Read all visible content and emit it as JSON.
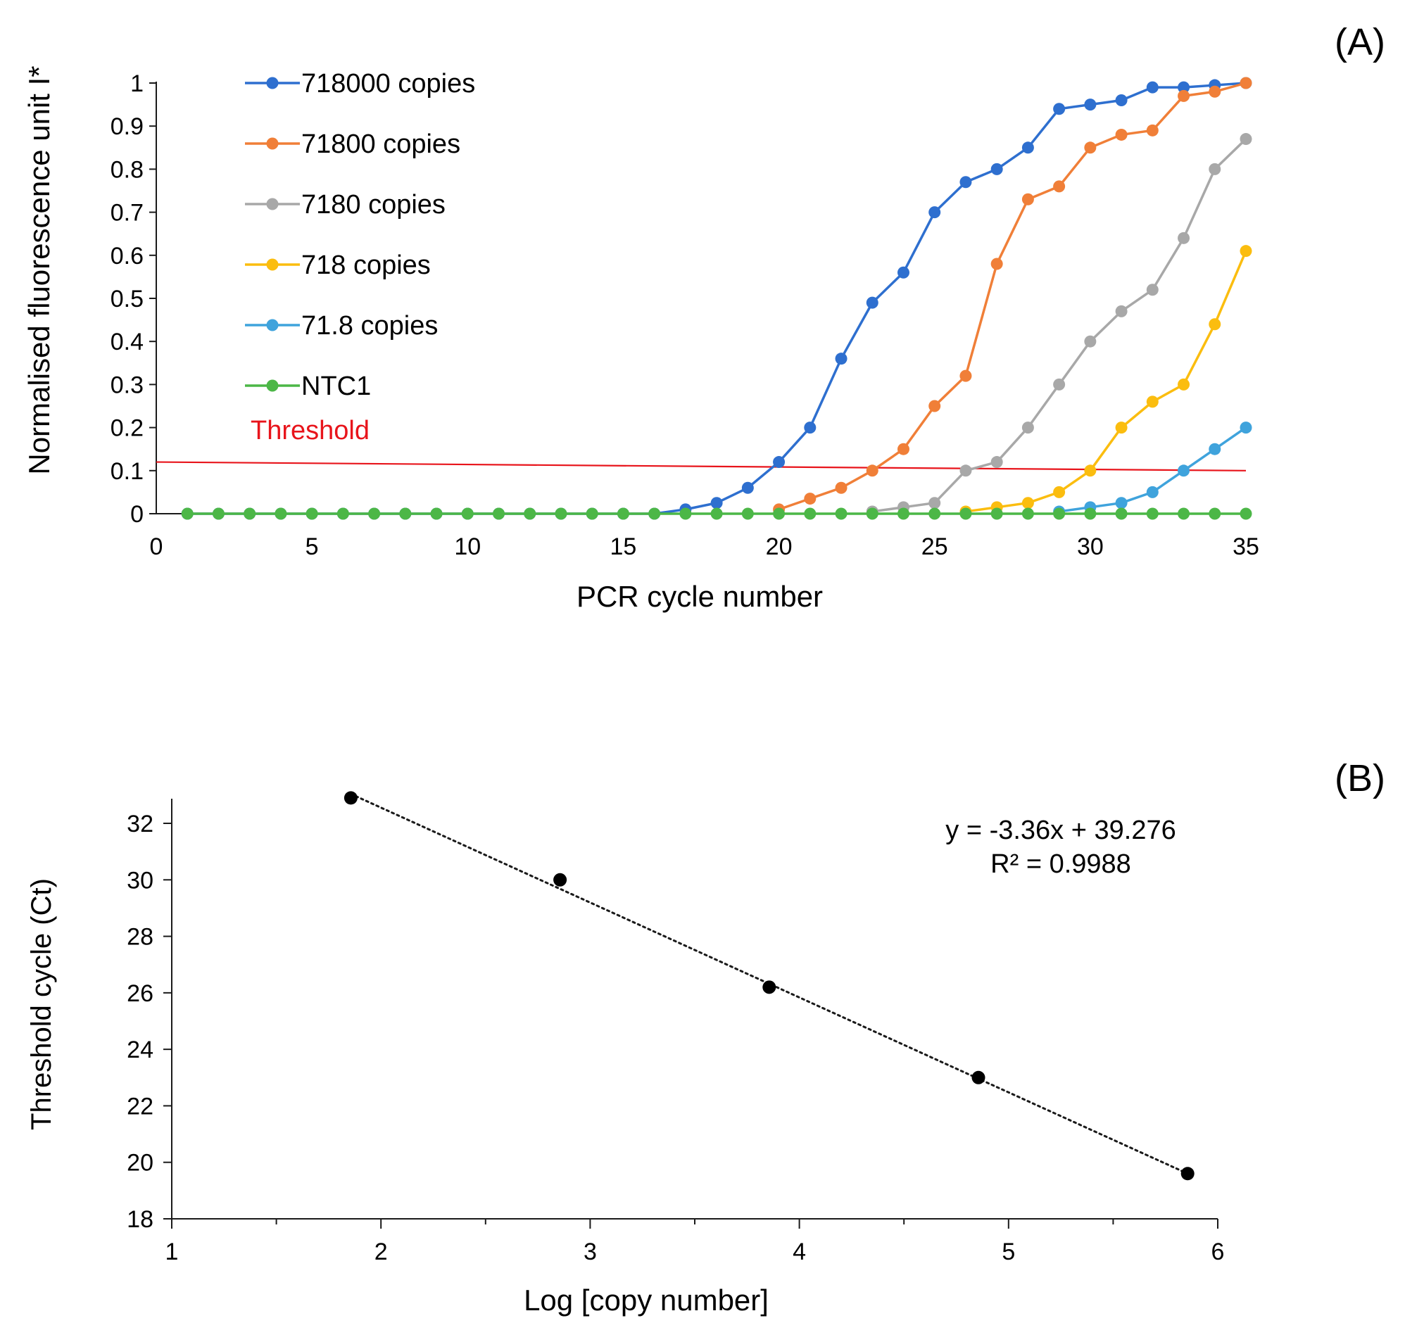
{
  "chart_data": [
    {
      "panel": "(A)",
      "type": "line",
      "xlabel": "PCR cycle number",
      "ylabel": "Normalised fluorescence unit I*",
      "xlim": [
        0,
        35
      ],
      "ylim": [
        0,
        1
      ],
      "xticks": [
        "0",
        "5",
        "10",
        "15",
        "20",
        "25",
        "30",
        "35"
      ],
      "yticks": [
        "0",
        "0.1",
        "0.2",
        "0.3",
        "0.4",
        "0.5",
        "0.6",
        "0.7",
        "0.8",
        "0.9",
        "1"
      ],
      "legend_position": "top-left",
      "series": [
        {
          "name": "718000 copies",
          "color": "#2e6fcf",
          "x": [
            1,
            2,
            3,
            4,
            5,
            6,
            7,
            8,
            9,
            10,
            11,
            12,
            13,
            14,
            15,
            16,
            17,
            18,
            19,
            20,
            21,
            22,
            23,
            24,
            25,
            26,
            27,
            28,
            29,
            30,
            31,
            32,
            33,
            34,
            35
          ],
          "values": [
            0,
            0,
            0,
            0,
            0,
            0,
            0,
            0,
            0,
            0,
            0,
            0,
            0,
            0,
            0,
            0,
            0.01,
            0.025,
            0.06,
            0.12,
            0.2,
            0.36,
            0.49,
            0.56,
            0.7,
            0.77,
            0.8,
            0.85,
            0.94,
            0.95,
            0.96,
            0.99,
            0.99,
            0.995,
            1.0
          ]
        },
        {
          "name": "71800 copies",
          "color": "#f07f38",
          "x": [
            20,
            21,
            22,
            23,
            24,
            25,
            26,
            27,
            28,
            29,
            30,
            31,
            32,
            33,
            34,
            35
          ],
          "values": [
            0.01,
            0.035,
            0.06,
            0.1,
            0.15,
            0.25,
            0.32,
            0.58,
            0.73,
            0.76,
            0.85,
            0.88,
            0.89,
            0.97,
            0.98,
            1.0
          ]
        },
        {
          "name": "7180 copies",
          "color": "#a8a8a8",
          "x": [
            23,
            24,
            25,
            26,
            27,
            28,
            29,
            30,
            31,
            32,
            33,
            34,
            35
          ],
          "values": [
            0.005,
            0.015,
            0.025,
            0.1,
            0.12,
            0.2,
            0.3,
            0.4,
            0.47,
            0.52,
            0.64,
            0.8,
            0.87
          ]
        },
        {
          "name": "718 copies",
          "color": "#fbbd0f",
          "x": [
            26,
            27,
            28,
            29,
            30,
            31,
            32,
            33,
            34,
            35
          ],
          "values": [
            0.005,
            0.015,
            0.025,
            0.05,
            0.1,
            0.2,
            0.26,
            0.3,
            0.44,
            0.61
          ]
        },
        {
          "name": "71.8 copies",
          "color": "#3fa3dc",
          "x": [
            29,
            30,
            31,
            32,
            33,
            34,
            35
          ],
          "values": [
            0.005,
            0.015,
            0.025,
            0.05,
            0.1,
            0.15,
            0.2
          ]
        },
        {
          "name": "NTC1",
          "color": "#4cb747",
          "x": [
            1,
            2,
            3,
            4,
            5,
            6,
            7,
            8,
            9,
            10,
            11,
            12,
            13,
            14,
            15,
            16,
            17,
            18,
            19,
            20,
            21,
            22,
            23,
            24,
            25,
            26,
            27,
            28,
            29,
            30,
            31,
            32,
            33,
            34,
            35
          ],
          "values": [
            0,
            0,
            0,
            0,
            0,
            0,
            0,
            0,
            0,
            0,
            0,
            0,
            0,
            0,
            0,
            0,
            0,
            0,
            0,
            0,
            0,
            0,
            0,
            0,
            0,
            0,
            0,
            0,
            0,
            0,
            0,
            0,
            0,
            0,
            0
          ]
        }
      ],
      "threshold": {
        "label": "Threshold",
        "color": "#e8141b",
        "x": [
          0,
          35
        ],
        "values": [
          0.12,
          0.1
        ]
      }
    },
    {
      "panel": "(B)",
      "type": "scatter",
      "xlabel": "Log [copy number]",
      "ylabel": "Threshold cycle (Ct)",
      "xlim": [
        1,
        6
      ],
      "ylim": [
        18,
        33
      ],
      "xticks": [
        "1",
        "2",
        "3",
        "4",
        "5",
        "6"
      ],
      "yticks": [
        "18",
        "20",
        "22",
        "24",
        "26",
        "28",
        "30",
        "32"
      ],
      "series": [
        {
          "name": "Ct",
          "color": "#000000",
          "x": [
            1.856,
            2.856,
            3.856,
            4.856,
            5.856
          ],
          "values": [
            32.9,
            30.0,
            26.2,
            23.0,
            19.6
          ]
        }
      ],
      "trendline": {
        "style": "dotted",
        "x": [
          1.856,
          5.856
        ],
        "values": [
          33.04,
          19.6
        ]
      },
      "annotation": {
        "equation": "y = -3.36x + 39.276",
        "r2": "R² = 0.9988"
      }
    }
  ]
}
